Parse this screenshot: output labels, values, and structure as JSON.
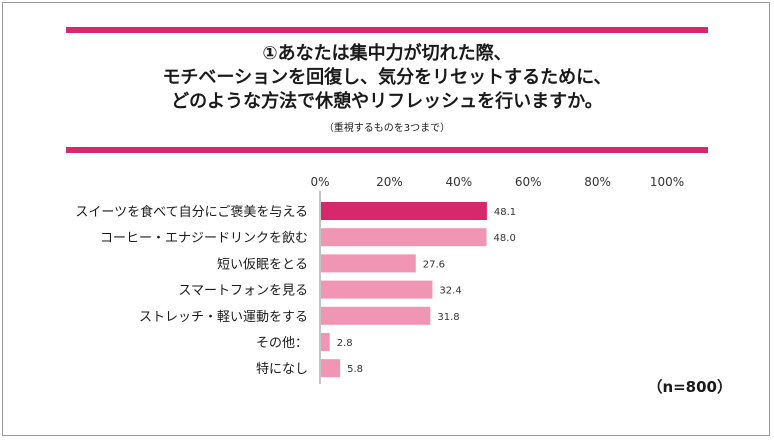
{
  "title_lines": [
    "①あなたは集中力が切れた際、",
    "モチベーションを回復し、気分をリセットするために、",
    "どのような方法で休憩やリフレッシュを行いますか。"
  ],
  "note": "（重視するものを3つまで）",
  "sample_size": "（n=800）",
  "colors": {
    "accent": "#d6286b",
    "bar_primary": "#d6286b",
    "bar_secondary": "#f095b4",
    "axis": "#8a8a8a"
  },
  "chart_data": {
    "type": "bar",
    "orientation": "horizontal",
    "categories": [
      "スイーツを食べて自分にご褒美を与える",
      "コーヒー・エナジードリンクを飲む",
      "短い仮眠をとる",
      "スマートフォンを見る",
      "ストレッチ・軽い運動をする",
      "その他：",
      "特になし"
    ],
    "values": [
      48.1,
      48.0,
      27.6,
      32.4,
      31.8,
      2.8,
      5.8
    ],
    "value_labels": [
      "48.1",
      "48.0",
      "27.6",
      "32.4",
      "31.8",
      "2.8",
      "5.8"
    ],
    "xlim": [
      0,
      100
    ],
    "ticks": [
      0,
      20,
      40,
      60,
      80,
      100
    ],
    "tick_labels": [
      "0%",
      "20%",
      "40%",
      "60%",
      "80%",
      "100%"
    ],
    "highlight_index": 0,
    "unit": "%"
  }
}
